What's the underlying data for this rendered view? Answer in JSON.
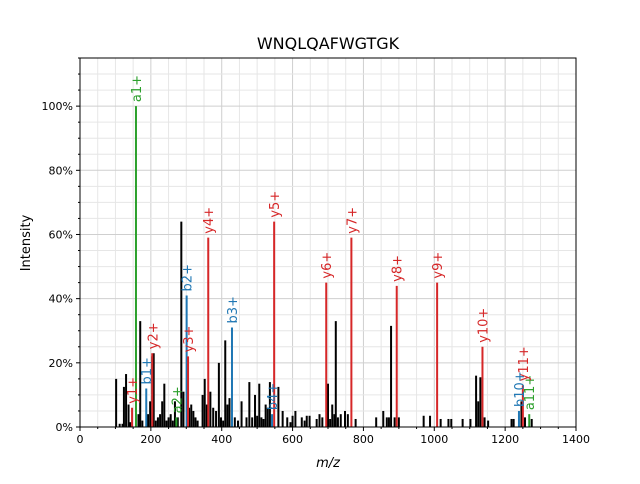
{
  "chart_data": {
    "type": "bar",
    "title": "WNQLQAFWGTGK",
    "xlabel": "m/z",
    "ylabel": "Intensity",
    "xlim": [
      0,
      1400
    ],
    "ylim": [
      0,
      115
    ],
    "xticks": [
      0,
      200,
      400,
      600,
      800,
      1000,
      1200,
      1400
    ],
    "xtick_labels": [
      "0",
      "200",
      "400",
      "600",
      "800",
      "1000",
      "1200",
      "1400"
    ],
    "yticks": [
      0,
      20,
      40,
      60,
      80,
      100
    ],
    "ytick_labels": [
      "0%",
      "20%",
      "40%",
      "60%",
      "80%",
      "100%"
    ],
    "grid": true,
    "colors": {
      "a": "#2ca02c",
      "b": "#1f77b4",
      "y": "#d62728",
      "unannotated": "#000000"
    },
    "annotated_peaks": [
      {
        "label": "a1+",
        "series": "a",
        "mz": 158,
        "intensity": 100
      },
      {
        "label": "a2+",
        "series": "a",
        "mz": 272,
        "intensity": 3
      },
      {
        "label": "a11+",
        "series": "a",
        "mz": 1268,
        "intensity": 4
      },
      {
        "label": "b1+",
        "series": "b",
        "mz": 187,
        "intensity": 12
      },
      {
        "label": "b2+",
        "series": "b",
        "mz": 301,
        "intensity": 41
      },
      {
        "label": "b3+",
        "series": "b",
        "mz": 429,
        "intensity": 31
      },
      {
        "label": "b4+",
        "series": "b",
        "mz": 542,
        "intensity": 4
      },
      {
        "label": "b10+",
        "series": "b",
        "mz": 1239,
        "intensity": 5
      },
      {
        "label": "y1+",
        "series": "y",
        "mz": 147,
        "intensity": 6
      },
      {
        "label": "y2+",
        "series": "y",
        "mz": 204,
        "intensity": 23
      },
      {
        "label": "y3+",
        "series": "y",
        "mz": 305,
        "intensity": 22
      },
      {
        "label": "y4+",
        "series": "y",
        "mz": 362,
        "intensity": 59
      },
      {
        "label": "y5+",
        "series": "y",
        "mz": 548,
        "intensity": 64
      },
      {
        "label": "y6+",
        "series": "y",
        "mz": 695,
        "intensity": 45
      },
      {
        "label": "y7+",
        "series": "y",
        "mz": 766,
        "intensity": 59
      },
      {
        "label": "y8+",
        "series": "y",
        "mz": 894,
        "intensity": 44
      },
      {
        "label": "y9+",
        "series": "y",
        "mz": 1008,
        "intensity": 45
      },
      {
        "label": "y10+",
        "series": "y",
        "mz": 1136,
        "intensity": 25
      },
      {
        "label": "y11+",
        "series": "y",
        "mz": 1250,
        "intensity": 13
      }
    ],
    "unannotated_peaks": [
      [
        102,
        15
      ],
      [
        112,
        1
      ],
      [
        120,
        1
      ],
      [
        124,
        12.5
      ],
      [
        130,
        16.5
      ],
      [
        137,
        7
      ],
      [
        142,
        1.5
      ],
      [
        165,
        4
      ],
      [
        170,
        33
      ],
      [
        176,
        2
      ],
      [
        192,
        4
      ],
      [
        198,
        8
      ],
      [
        204,
        22
      ],
      [
        208,
        23
      ],
      [
        214,
        2
      ],
      [
        220,
        3
      ],
      [
        226,
        4
      ],
      [
        232,
        8
      ],
      [
        238,
        13.5
      ],
      [
        244,
        2
      ],
      [
        250,
        3
      ],
      [
        256,
        4
      ],
      [
        262,
        2
      ],
      [
        268,
        8
      ],
      [
        276,
        3
      ],
      [
        286,
        64
      ],
      [
        292,
        11
      ],
      [
        308,
        6
      ],
      [
        314,
        7
      ],
      [
        320,
        5
      ],
      [
        326,
        3
      ],
      [
        332,
        2
      ],
      [
        346,
        10
      ],
      [
        352,
        15
      ],
      [
        358,
        7
      ],
      [
        368,
        11
      ],
      [
        376,
        6
      ],
      [
        384,
        5
      ],
      [
        392,
        20
      ],
      [
        398,
        3
      ],
      [
        404,
        2
      ],
      [
        410,
        27
      ],
      [
        416,
        7
      ],
      [
        422,
        9
      ],
      [
        437,
        3
      ],
      [
        446,
        2
      ],
      [
        456,
        8
      ],
      [
        470,
        3
      ],
      [
        478,
        14
      ],
      [
        486,
        3
      ],
      [
        494,
        10
      ],
      [
        500,
        3.5
      ],
      [
        506,
        13.5
      ],
      [
        512,
        3
      ],
      [
        518,
        2.5
      ],
      [
        524,
        7
      ],
      [
        530,
        6
      ],
      [
        536,
        14
      ],
      [
        560,
        12.5
      ],
      [
        572,
        5
      ],
      [
        585,
        3
      ],
      [
        594,
        1.5
      ],
      [
        600,
        3.5
      ],
      [
        608,
        5
      ],
      [
        626,
        3
      ],
      [
        634,
        2
      ],
      [
        640,
        3.5
      ],
      [
        648,
        3.5
      ],
      [
        668,
        2.5
      ],
      [
        676,
        4
      ],
      [
        684,
        3
      ],
      [
        700,
        13.5
      ],
      [
        706,
        2.5
      ],
      [
        712,
        7
      ],
      [
        718,
        4
      ],
      [
        722,
        33
      ],
      [
        728,
        3
      ],
      [
        736,
        4
      ],
      [
        748,
        5
      ],
      [
        756,
        4
      ],
      [
        778,
        2.5
      ],
      [
        836,
        3
      ],
      [
        856,
        5
      ],
      [
        866,
        3
      ],
      [
        872,
        3
      ],
      [
        878,
        31.5
      ],
      [
        888,
        3
      ],
      [
        900,
        3
      ],
      [
        970,
        3.5
      ],
      [
        988,
        3.5
      ],
      [
        1018,
        2.5
      ],
      [
        1040,
        2.5
      ],
      [
        1048,
        2.5
      ],
      [
        1080,
        2.5
      ],
      [
        1102,
        2.5
      ],
      [
        1118,
        16
      ],
      [
        1124,
        8
      ],
      [
        1130,
        15.5
      ],
      [
        1142,
        3
      ],
      [
        1152,
        2
      ],
      [
        1218,
        2.5
      ],
      [
        1224,
        2.5
      ],
      [
        1246,
        8
      ],
      [
        1256,
        3
      ],
      [
        1275,
        2.5
      ]
    ]
  }
}
